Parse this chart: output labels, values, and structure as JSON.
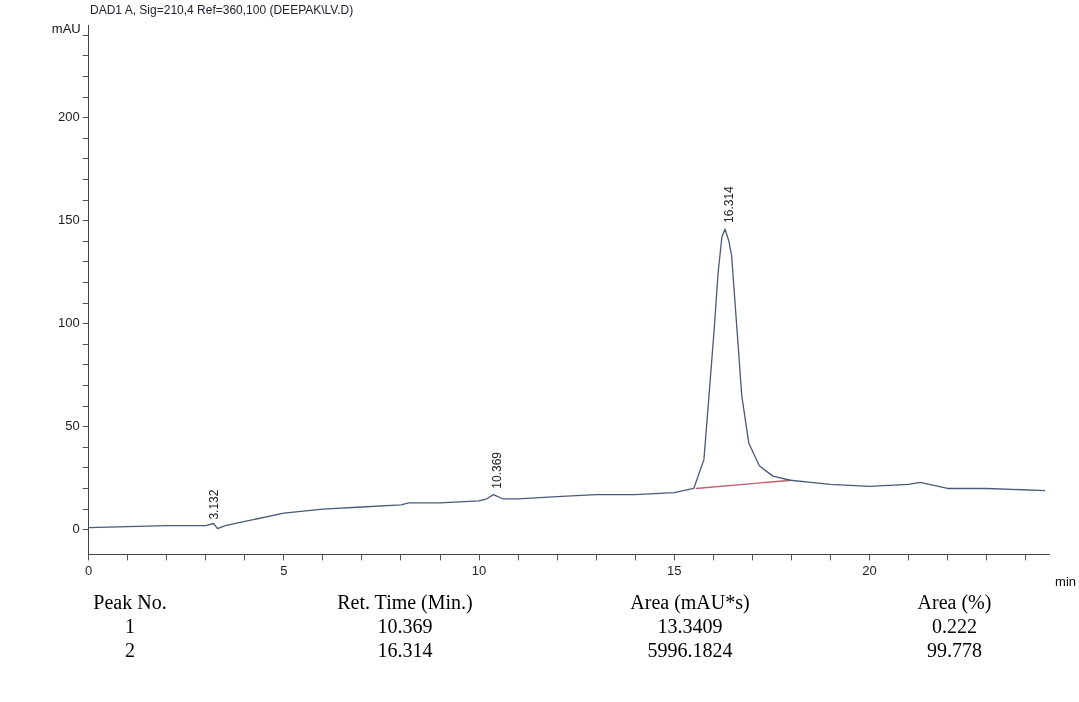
{
  "chart_data": {
    "type": "line",
    "title": "DAD1 A, Sig=210,4 Ref=360,100 (DEEPAK\\LV.D)",
    "xlabel": "min",
    "ylabel": "mAU",
    "xlim": [
      0,
      24.6
    ],
    "ylim": [
      -12,
      245
    ],
    "xticks": [
      0,
      {
        "value": 1,
        "label": null
      },
      {
        "value": 2,
        "label": null
      },
      {
        "value": 3,
        "label": null
      },
      {
        "value": 4,
        "label": null
      },
      5,
      {
        "value": 6,
        "label": null
      },
      {
        "value": 7,
        "label": null
      },
      {
        "value": 8,
        "label": null
      },
      {
        "value": 9,
        "label": null
      },
      10,
      {
        "value": 11,
        "label": null
      },
      {
        "value": 12,
        "label": null
      },
      {
        "value": 13,
        "label": null
      },
      {
        "value": 14,
        "label": null
      },
      15,
      {
        "value": 16,
        "label": null
      },
      {
        "value": 17,
        "label": null
      },
      {
        "value": 18,
        "label": null
      },
      {
        "value": 19,
        "label": null
      },
      20,
      {
        "value": 21,
        "label": null
      },
      {
        "value": 22,
        "label": null
      },
      {
        "value": 23,
        "label": null
      },
      {
        "value": 24,
        "label": null
      }
    ],
    "yticks": [
      0,
      {
        "value": 10,
        "label": null
      },
      {
        "value": 20,
        "label": null
      },
      {
        "value": 30,
        "label": null
      },
      {
        "value": 40,
        "label": null
      },
      50,
      {
        "value": 60,
        "label": null
      },
      {
        "value": 70,
        "label": null
      },
      {
        "value": 80,
        "label": null
      },
      {
        "value": 90,
        "label": null
      },
      100,
      {
        "value": 110,
        "label": null
      },
      {
        "value": 120,
        "label": null
      },
      {
        "value": 130,
        "label": null
      },
      {
        "value": 140,
        "label": null
      },
      150,
      {
        "value": 160,
        "label": null
      },
      {
        "value": 170,
        "label": null
      },
      {
        "value": 180,
        "label": null
      },
      {
        "value": 190,
        "label": null
      },
      200,
      {
        "value": 210,
        "label": null
      },
      {
        "value": 220,
        "label": null
      },
      {
        "value": 230,
        "label": null
      },
      {
        "value": 240,
        "label": null
      }
    ],
    "grid": false,
    "legend": false,
    "marker": "none",
    "line_style": "solid",
    "series": [
      {
        "color": "#4a5a78",
        "x": [
          0,
          1,
          2,
          3,
          3.2,
          3.3,
          3.5,
          4,
          5,
          6,
          7,
          8,
          8.2,
          9,
          10,
          10.2,
          10.369,
          10.6,
          11,
          12,
          13,
          14,
          15,
          15.5,
          15.76,
          15.89,
          16.03,
          16.12,
          16.22,
          16.3,
          16.4,
          16.47,
          16.6,
          16.73,
          16.91,
          17.18,
          17.53,
          17.97,
          18.5,
          19,
          20,
          21,
          21.3,
          22,
          23,
          24.5
        ],
        "values": [
          1,
          1.5,
          2,
          2,
          3,
          0.5,
          2,
          4,
          8,
          10,
          11,
          12,
          13,
          13,
          14,
          15,
          17,
          15,
          15,
          16,
          17,
          17,
          18,
          20,
          34,
          65,
          99,
          124,
          142,
          146,
          140,
          133,
          99,
          65,
          42,
          31,
          26,
          24,
          23,
          22,
          21,
          22,
          23,
          20,
          20,
          19
        ]
      },
      {
        "color": "#c06070",
        "x": [
          15.55,
          18.0
        ],
        "values": [
          20,
          24
        ]
      }
    ],
    "annotations": [
      {
        "text": "3.132",
        "x": 3.132,
        "y": 2
      },
      {
        "text": "10.369",
        "x": 10.369,
        "y": 17
      },
      {
        "text": "16.314",
        "x": 16.314,
        "y": 146
      },
      "Peak No.",
      "Ret. Time (Min.)",
      "Area (mAU*s)",
      "Area (%)",
      "1",
      "10.369",
      "13.3409",
      "0.222",
      "2",
      "16.314",
      "5996.1824",
      "99.778"
    ]
  }
}
